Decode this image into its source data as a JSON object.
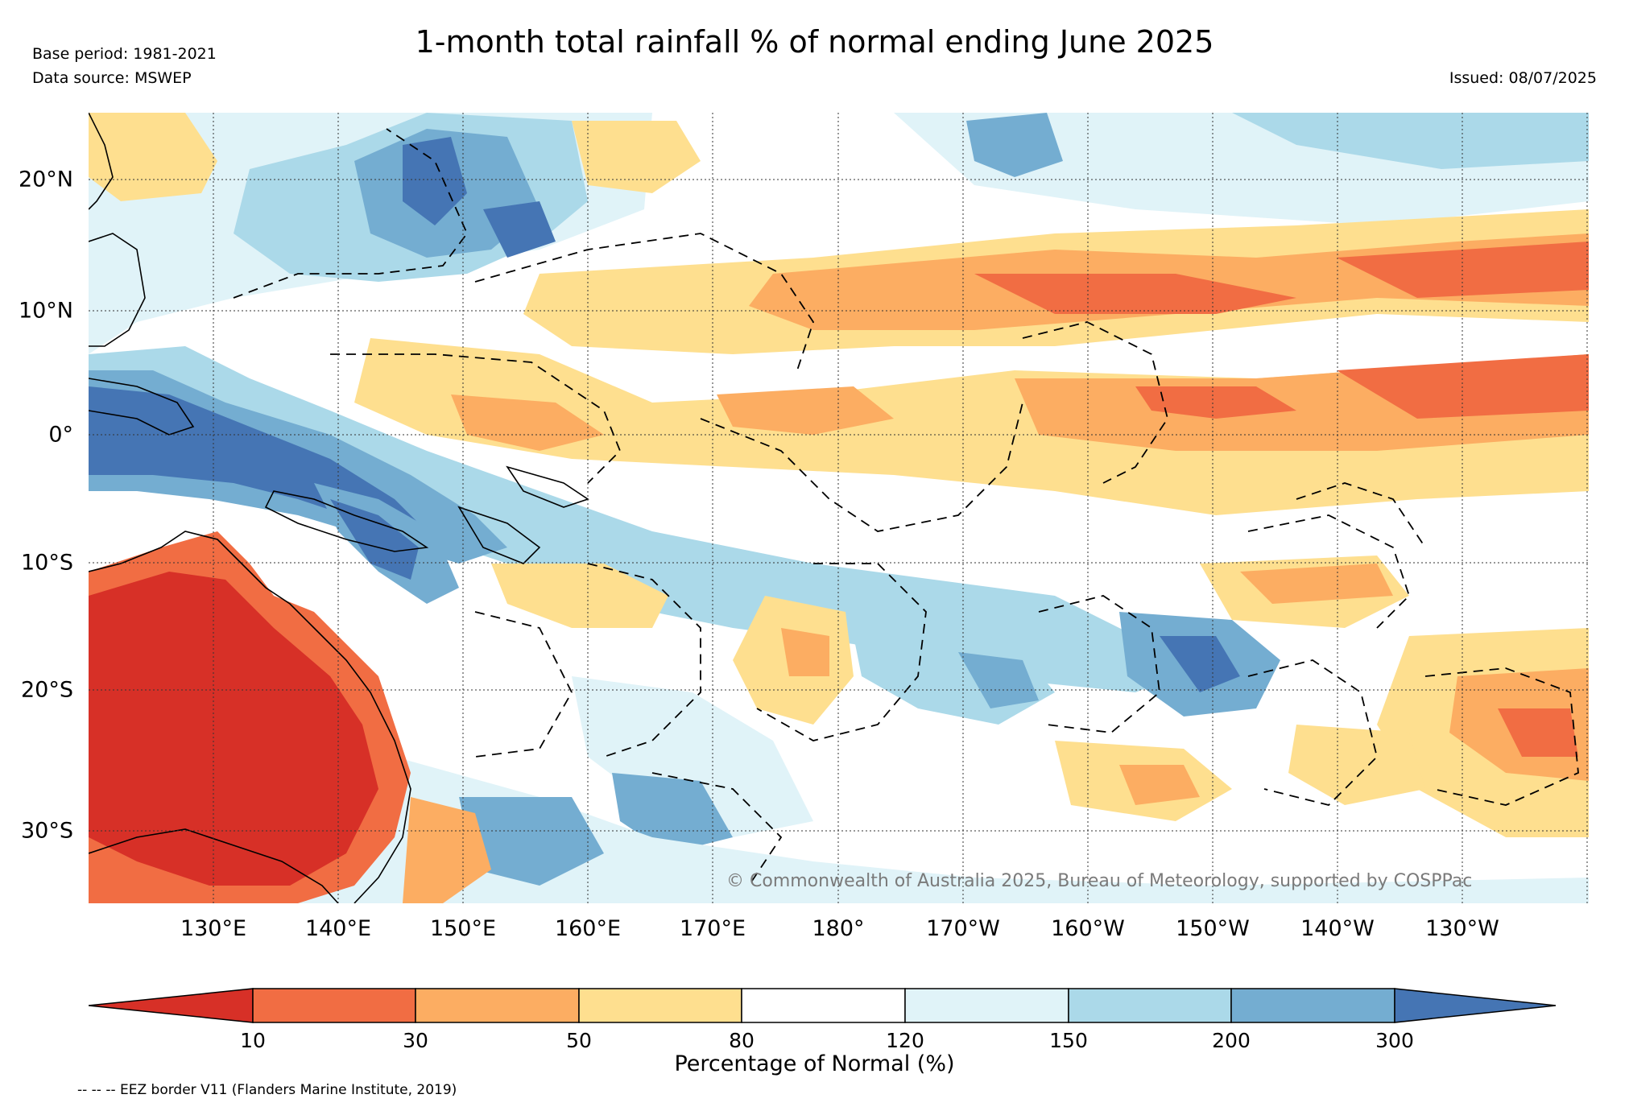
{
  "header": {
    "title": "1-month total rainfall % of normal ending June 2025",
    "base_period": "Base period: 1981-2021",
    "data_source": "Data source: MSWEP",
    "issued": "Issued: 08/07/2025"
  },
  "map": {
    "region": "Western and Central Pacific",
    "lon_labels": [
      "130°E",
      "140°E",
      "150°E",
      "160°E",
      "170°E",
      "180°",
      "170°W",
      "160°W",
      "150°W",
      "140°W",
      "130°W"
    ],
    "lat_labels": [
      "20°N",
      "10°N",
      "0°",
      "10°S",
      "20°S",
      "30°S"
    ],
    "copyright": "© Commonwealth of Australia 2025, Bureau of Meteorology, supported by COSPPac"
  },
  "colorbar": {
    "label": "Percentage of Normal (%)",
    "ticks": [
      "10",
      "30",
      "50",
      "80",
      "120",
      "150",
      "200",
      "300"
    ],
    "colors": [
      "#d73027",
      "#f16d43",
      "#fcad62",
      "#fedf8f",
      "#ffffff",
      "#e0f3f8",
      "#abd9e9",
      "#74add1",
      "#4575b4"
    ]
  },
  "footer": {
    "eez_note": "-- -- -- EEZ border V11 (Flanders Marine Institute, 2019)"
  }
}
